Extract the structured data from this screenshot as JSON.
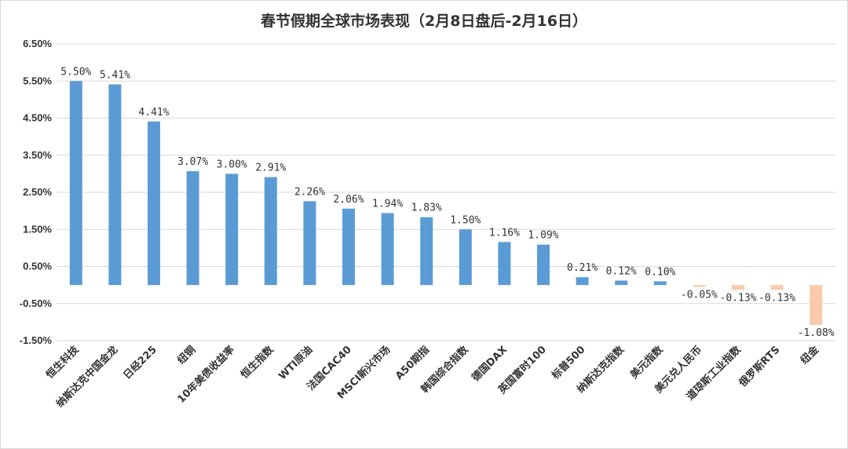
{
  "chart_data": {
    "type": "bar",
    "title": "春节假期全球市场表现（2月8日盘后-2月16日）",
    "categories": [
      "恒生科技",
      "纳斯达克中国金龙",
      "日经225",
      "纽铜",
      "10年美债收益率",
      "恒生指数",
      "WTI原油",
      "法国CAC40",
      "MSCI新兴市场",
      "A50期指",
      "韩国综合指数",
      "德国DAX",
      "英国富时100",
      "标普500",
      "纳斯达克指数",
      "美元指数",
      "美元兑人民币",
      "道琼斯工业指数",
      "俄罗斯RTS",
      "纽金"
    ],
    "values": [
      5.5,
      5.41,
      4.41,
      3.07,
      3.0,
      2.91,
      2.26,
      2.06,
      1.94,
      1.83,
      1.5,
      1.16,
      1.09,
      0.21,
      0.12,
      0.1,
      -0.05,
      -0.13,
      -0.13,
      -1.08
    ],
    "data_labels": [
      "5.50%",
      "5.41%",
      "4.41%",
      "3.07%",
      "3.00%",
      "2.91%",
      "2.26%",
      "2.06%",
      "1.94%",
      "1.83%",
      "1.50%",
      "1.16%",
      "1.09%",
      "0.21%",
      "0.12%",
      "0.10%",
      "-0.05%",
      "-0.13%",
      "-0.13%",
      "-1.08%"
    ],
    "y_ticks": [
      6.5,
      5.5,
      4.5,
      3.5,
      2.5,
      1.5,
      0.5,
      -0.5,
      -1.5
    ],
    "y_tick_labels": [
      "6.50%",
      "5.50%",
      "4.50%",
      "3.50%",
      "2.50%",
      "1.50%",
      "0.50%",
      "-0.50%",
      "-1.50%"
    ],
    "ylim": [
      -1.5,
      6.5
    ],
    "grid": true,
    "xlabel": "",
    "ylabel": "",
    "colors": {
      "positive": "#5b9bd5",
      "negative": "#f8cbad",
      "grid": "#d9d9d9",
      "text": "#333333"
    }
  }
}
